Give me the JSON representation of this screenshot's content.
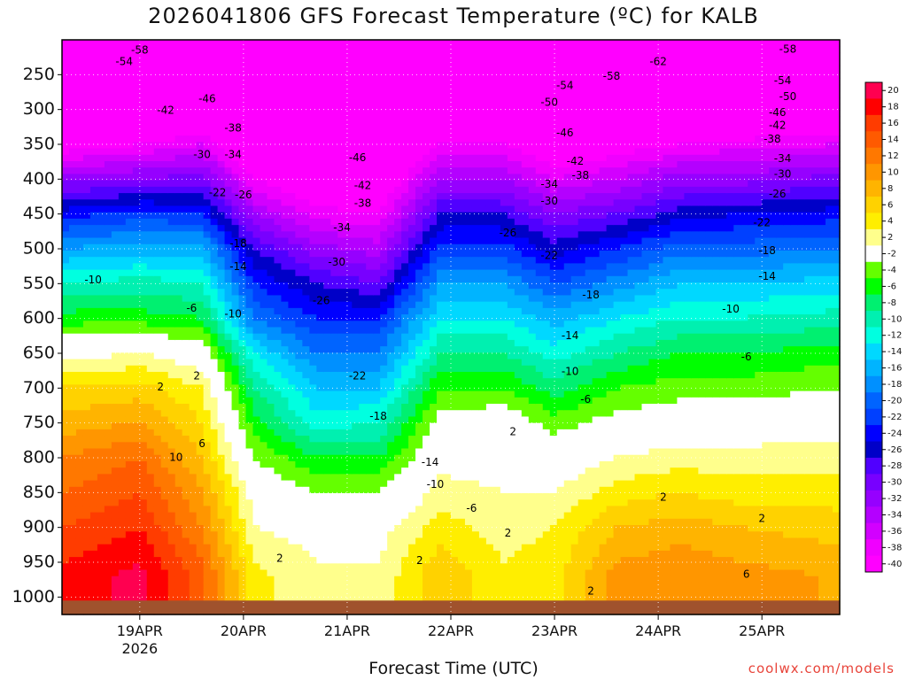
{
  "title": "2026041806 GFS Forecast Temperature (ºC) for KALB",
  "xlabel": "Forecast Time (UTC)",
  "credit": "coolwx.com/models",
  "chart_data": {
    "type": "heatmap",
    "title": "2026041806 GFS Forecast Temperature (ºC) for KALB",
    "xlabel": "Forecast Time (UTC)",
    "ylabel": "",
    "x_ticks": [
      {
        "label": "19APR",
        "sub": "2026",
        "day": 1
      },
      {
        "label": "20APR",
        "sub": "",
        "day": 2
      },
      {
        "label": "21APR",
        "sub": "",
        "day": 3
      },
      {
        "label": "22APR",
        "sub": "",
        "day": 4
      },
      {
        "label": "23APR",
        "sub": "",
        "day": 5
      },
      {
        "label": "24APR",
        "sub": "",
        "day": 6
      },
      {
        "label": "25APR",
        "sub": "",
        "day": 7
      }
    ],
    "x_range_days": [
      0.25,
      7.75
    ],
    "y_ticks": [
      250,
      300,
      350,
      400,
      450,
      500,
      550,
      600,
      650,
      700,
      750,
      800,
      850,
      900,
      950,
      1000
    ],
    "y_range_hpa": [
      200,
      1025
    ],
    "colorbar": {
      "levels": [
        20,
        18,
        16,
        14,
        12,
        10,
        8,
        6,
        4,
        2,
        -2,
        -4,
        -6,
        -8,
        -10,
        -12,
        -14,
        -16,
        -18,
        -20,
        -22,
        -24,
        -26,
        -28,
        -30,
        -32,
        -34,
        -36,
        -38,
        -40
      ],
      "colors": [
        "#ff0050",
        "#ff0000",
        "#ff3c00",
        "#ff5a00",
        "#ff7800",
        "#ff9600",
        "#ffb400",
        "#ffd200",
        "#ffee00",
        "#ffff8c",
        "#ffffff",
        "#64ff00",
        "#00ff00",
        "#00f070",
        "#00f0b0",
        "#00ffe0",
        "#00d8ff",
        "#00b4ff",
        "#0090ff",
        "#0064ff",
        "#0040ff",
        "#0000ff",
        "#0000c8",
        "#5000ff",
        "#7800ff",
        "#9600ff",
        "#b400ff",
        "#d200ff",
        "#f000ff",
        "#ff00ff"
      ]
    },
    "temperature_profiles": [
      {
        "time_days": 0.25,
        "temps_c": [
          -60,
          -55,
          -47,
          -40,
          -31,
          -23,
          -16,
          -10,
          -5,
          1,
          6,
          9,
          12,
          14,
          16,
          18
        ]
      },
      {
        "time_days": 1.0,
        "temps_c": [
          -59,
          -54,
          -45,
          -38,
          -30,
          -21,
          -15,
          -9,
          -5,
          2,
          7,
          10,
          14,
          16,
          18,
          20
        ]
      },
      {
        "time_days": 1.6,
        "temps_c": [
          -58,
          -52,
          -43,
          -36,
          -29,
          -22,
          -15,
          -10,
          -6,
          0,
          4,
          6,
          8,
          10,
          12,
          14
        ]
      },
      {
        "time_days": 2.1,
        "temps_c": [
          -56,
          -49,
          -46,
          -44,
          -38,
          -32,
          -26,
          -22,
          -18,
          -12,
          -8,
          -5,
          -2,
          1,
          2,
          4
        ]
      },
      {
        "time_days": 2.7,
        "temps_c": [
          -58,
          -51,
          -48,
          -46,
          -42,
          -37,
          -31,
          -26,
          -22,
          -18,
          -14,
          -11,
          -6,
          -2,
          1,
          2
        ]
      },
      {
        "time_days": 3.3,
        "temps_c": [
          -58,
          -52,
          -49,
          -46,
          -42,
          -38,
          -33,
          -28,
          -22,
          -18,
          -14,
          -10,
          -6,
          -2,
          1,
          2
        ]
      },
      {
        "time_days": 3.9,
        "temps_c": [
          -58,
          -54,
          -48,
          -38,
          -32,
          -26,
          -21,
          -16,
          -12,
          -8,
          -4,
          -1,
          1,
          3,
          5,
          7
        ]
      },
      {
        "time_days": 4.5,
        "temps_c": [
          -60,
          -55,
          -48,
          -38,
          -32,
          -26,
          -21,
          -16,
          -12,
          -8,
          -4,
          0,
          1,
          2,
          3,
          4
        ]
      },
      {
        "time_days": 5.0,
        "temps_c": [
          -62,
          -57,
          -50,
          -42,
          -36,
          -30,
          -25,
          -20,
          -15,
          -11,
          -7,
          -3,
          0,
          2,
          4,
          5
        ]
      },
      {
        "time_days": 5.6,
        "temps_c": [
          -62,
          -55,
          -47,
          -40,
          -34,
          -28,
          -22,
          -17,
          -12,
          -8,
          -4,
          -1,
          2,
          5,
          8,
          10
        ]
      },
      {
        "time_days": 6.2,
        "temps_c": [
          -60,
          -53,
          -45,
          -38,
          -31,
          -25,
          -19,
          -14,
          -10,
          -6,
          -3,
          0,
          3,
          6,
          9,
          11
        ]
      },
      {
        "time_days": 6.8,
        "temps_c": [
          -59,
          -52,
          -44,
          -37,
          -31,
          -24,
          -19,
          -14,
          -10,
          -6,
          -3,
          0,
          3,
          5,
          8,
          10
        ]
      },
      {
        "time_days": 7.75,
        "temps_c": [
          -58,
          -51,
          -43,
          -36,
          -29,
          -23,
          -18,
          -13,
          -9,
          -5,
          -2,
          1,
          3,
          5,
          7,
          9
        ]
      }
    ],
    "profile_levels_hpa": [
      200,
      250,
      300,
      350,
      400,
      450,
      500,
      550,
      600,
      650,
      700,
      750,
      800,
      850,
      900,
      950
    ],
    "contour_labels": [
      {
        "text": "-58",
        "day": 1.0,
        "hpa": 215
      },
      {
        "text": "-54",
        "day": 0.85,
        "hpa": 232
      },
      {
        "text": "-46",
        "day": 1.65,
        "hpa": 285
      },
      {
        "text": "-42",
        "day": 1.25,
        "hpa": 302
      },
      {
        "text": "-38",
        "day": 1.9,
        "hpa": 327
      },
      {
        "text": "-30",
        "day": 1.6,
        "hpa": 365
      },
      {
        "text": "-34",
        "day": 1.9,
        "hpa": 365
      },
      {
        "text": "-22",
        "day": 1.75,
        "hpa": 420
      },
      {
        "text": "-26",
        "day": 2.0,
        "hpa": 423
      },
      {
        "text": "-18",
        "day": 1.95,
        "hpa": 493
      },
      {
        "text": "-14",
        "day": 1.95,
        "hpa": 526
      },
      {
        "text": "-10",
        "day": 0.55,
        "hpa": 545
      },
      {
        "text": "-6",
        "day": 1.5,
        "hpa": 586
      },
      {
        "text": "-10",
        "day": 1.9,
        "hpa": 594
      },
      {
        "text": "2",
        "day": 1.55,
        "hpa": 683
      },
      {
        "text": "2",
        "day": 1.2,
        "hpa": 699
      },
      {
        "text": "6",
        "day": 1.6,
        "hpa": 780
      },
      {
        "text": "10",
        "day": 1.35,
        "hpa": 800
      },
      {
        "text": "2",
        "day": 2.35,
        "hpa": 945
      },
      {
        "text": "-46",
        "day": 3.1,
        "hpa": 370
      },
      {
        "text": "-42",
        "day": 3.15,
        "hpa": 410
      },
      {
        "text": "-38",
        "day": 3.15,
        "hpa": 435
      },
      {
        "text": "-34",
        "day": 2.95,
        "hpa": 470
      },
      {
        "text": "-30",
        "day": 2.9,
        "hpa": 520
      },
      {
        "text": "-26",
        "day": 2.75,
        "hpa": 575
      },
      {
        "text": "-22",
        "day": 3.1,
        "hpa": 683
      },
      {
        "text": "-18",
        "day": 3.3,
        "hpa": 741
      },
      {
        "text": "-14",
        "day": 3.8,
        "hpa": 807
      },
      {
        "text": "-10",
        "day": 3.85,
        "hpa": 839
      },
      {
        "text": "-6",
        "day": 4.2,
        "hpa": 873
      },
      {
        "text": "2",
        "day": 3.7,
        "hpa": 948
      },
      {
        "text": "-54",
        "day": 5.1,
        "hpa": 266
      },
      {
        "text": "-50",
        "day": 4.95,
        "hpa": 290
      },
      {
        "text": "-46",
        "day": 5.1,
        "hpa": 334
      },
      {
        "text": "-42",
        "day": 5.2,
        "hpa": 375
      },
      {
        "text": "-38",
        "day": 5.25,
        "hpa": 395
      },
      {
        "text": "-34",
        "day": 4.95,
        "hpa": 408
      },
      {
        "text": "-30",
        "day": 4.95,
        "hpa": 432
      },
      {
        "text": "-26",
        "day": 4.55,
        "hpa": 478
      },
      {
        "text": "-22",
        "day": 4.95,
        "hpa": 510
      },
      {
        "text": "-18",
        "day": 5.35,
        "hpa": 567
      },
      {
        "text": "-14",
        "day": 5.15,
        "hpa": 625
      },
      {
        "text": "-10",
        "day": 5.15,
        "hpa": 677
      },
      {
        "text": "-6",
        "day": 5.3,
        "hpa": 717
      },
      {
        "text": "2",
        "day": 4.6,
        "hpa": 763
      },
      {
        "text": "2",
        "day": 4.55,
        "hpa": 909
      },
      {
        "text": "-62",
        "day": 6.0,
        "hpa": 232
      },
      {
        "text": "-58",
        "day": 5.55,
        "hpa": 253
      },
      {
        "text": "-58",
        "day": 7.25,
        "hpa": 214
      },
      {
        "text": "-54",
        "day": 7.2,
        "hpa": 259
      },
      {
        "text": "-50",
        "day": 7.25,
        "hpa": 282
      },
      {
        "text": "-46",
        "day": 7.15,
        "hpa": 305
      },
      {
        "text": "-42",
        "day": 7.15,
        "hpa": 323
      },
      {
        "text": "-38",
        "day": 7.1,
        "hpa": 343
      },
      {
        "text": "-34",
        "day": 7.2,
        "hpa": 371
      },
      {
        "text": "-30",
        "day": 7.2,
        "hpa": 393
      },
      {
        "text": "-26",
        "day": 7.15,
        "hpa": 422
      },
      {
        "text": "-22",
        "day": 7.0,
        "hpa": 463
      },
      {
        "text": "-18",
        "day": 7.05,
        "hpa": 503
      },
      {
        "text": "-14",
        "day": 7.05,
        "hpa": 540
      },
      {
        "text": "-10",
        "day": 6.7,
        "hpa": 587
      },
      {
        "text": "-6",
        "day": 6.85,
        "hpa": 656
      },
      {
        "text": "2",
        "day": 6.05,
        "hpa": 857
      },
      {
        "text": "2",
        "day": 7.0,
        "hpa": 888
      },
      {
        "text": "6",
        "day": 6.85,
        "hpa": 968
      },
      {
        "text": "2",
        "day": 5.35,
        "hpa": 992
      }
    ]
  }
}
